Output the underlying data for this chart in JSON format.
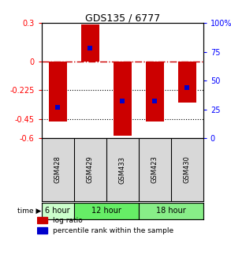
{
  "title": "GDS135 / 6777",
  "samples": [
    "GSM428",
    "GSM429",
    "GSM433",
    "GSM423",
    "GSM430"
  ],
  "log_ratios": [
    -0.47,
    0.29,
    -0.58,
    -0.47,
    -0.32
  ],
  "percentile_ranks": [
    27,
    78,
    32,
    32,
    44
  ],
  "ylim_left": [
    -0.6,
    0.3
  ],
  "ylim_right": [
    0,
    100
  ],
  "left_yticks": [
    0.3,
    0,
    -0.225,
    -0.45,
    -0.6
  ],
  "left_yticklabels": [
    "0.3",
    "0",
    "-0.225",
    "-0.45",
    "-0.6"
  ],
  "right_yticks": [
    100,
    75,
    50,
    25,
    0
  ],
  "right_yticklabels": [
    "100%",
    "75",
    "50",
    "25",
    "0"
  ],
  "bar_color": "#cc0000",
  "marker_color": "#0000cc",
  "dotted_lines": [
    -0.225,
    -0.45
  ],
  "time_groups": [
    {
      "label": "6 hour",
      "start": 0,
      "end": 1,
      "color": "#ccffcc"
    },
    {
      "label": "12 hour",
      "start": 1,
      "end": 3,
      "color": "#66ee66"
    },
    {
      "label": "18 hour",
      "start": 3,
      "end": 5,
      "color": "#88ee88"
    }
  ],
  "bar_width": 0.55,
  "legend_log_ratio": "log ratio",
  "legend_percentile": "percentile rank within the sample",
  "gsm_bg_color": "#d8d8d8",
  "plot_bg_color": "#ffffff"
}
